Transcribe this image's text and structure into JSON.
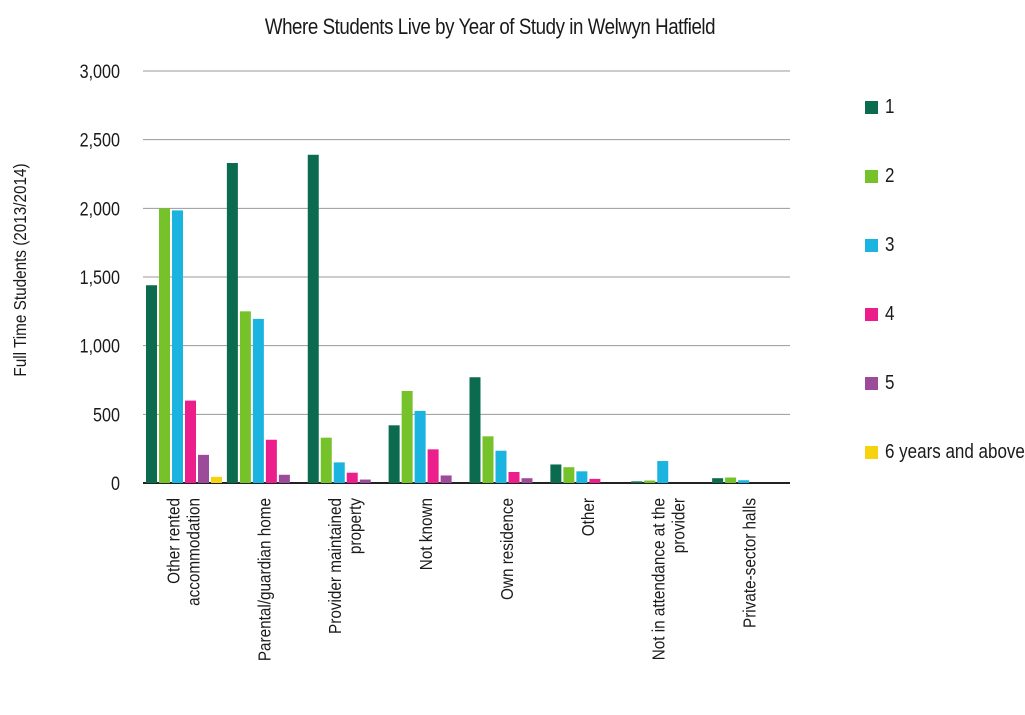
{
  "chart_data": {
    "type": "bar",
    "title": "Where Students Live by Year of Study in Welwyn Hatfield",
    "ylabel": "Full Time Students (2013/2014)",
    "xlabel": "",
    "ylim": [
      0,
      3000
    ],
    "yticks": [
      "0",
      "500",
      "1,000",
      "1,500",
      "2,000",
      "2,500",
      "3,000"
    ],
    "grid": true,
    "legend_position": "right",
    "categories": [
      "Other rented accommodation",
      "Parental/guardian home",
      "Provider maintained property",
      "Not known",
      "Own residence",
      "Other",
      "Not in attendance at the provider",
      "Private-sector halls"
    ],
    "series": [
      {
        "name": "1",
        "color": "#0b6b4f",
        "values": [
          1440,
          2330,
          2390,
          420,
          770,
          135,
          12,
          35
        ]
      },
      {
        "name": "2",
        "color": "#76c22b",
        "values": [
          2000,
          1250,
          330,
          670,
          340,
          115,
          18,
          40
        ]
      },
      {
        "name": "3",
        "color": "#1bb3e0",
        "values": [
          1985,
          1195,
          150,
          525,
          235,
          85,
          160,
          20
        ]
      },
      {
        "name": "4",
        "color": "#ec1e8c",
        "values": [
          600,
          315,
          75,
          245,
          80,
          30,
          0,
          0
        ]
      },
      {
        "name": "5",
        "color": "#9c4b9a",
        "values": [
          205,
          60,
          25,
          55,
          35,
          0,
          0,
          0
        ]
      },
      {
        "name": "6 years and above",
        "color": "#f5d40f",
        "values": [
          45,
          0,
          0,
          0,
          0,
          0,
          0,
          0
        ]
      }
    ]
  }
}
